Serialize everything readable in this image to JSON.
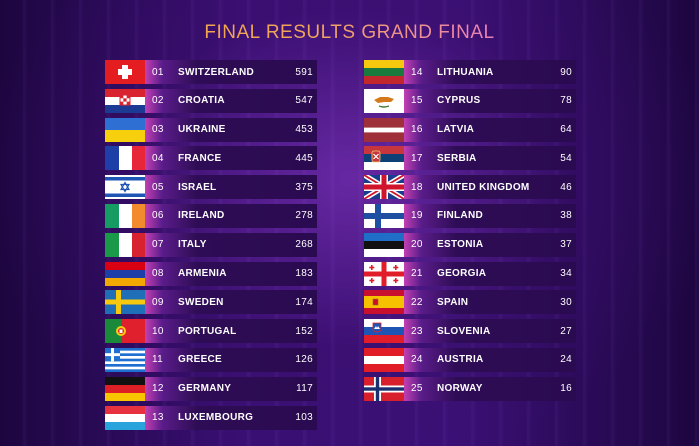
{
  "title": "FINAL RESULTS GRAND FINAL",
  "left": [
    {
      "rank": "01",
      "country": "SWITZERLAND",
      "points": "591",
      "flag_icon": "switzerland-flag-icon"
    },
    {
      "rank": "02",
      "country": "CROATIA",
      "points": "547",
      "flag_icon": "croatia-flag-icon"
    },
    {
      "rank": "03",
      "country": "UKRAINE",
      "points": "453",
      "flag_icon": "ukraine-flag-icon"
    },
    {
      "rank": "04",
      "country": "FRANCE",
      "points": "445",
      "flag_icon": "france-flag-icon"
    },
    {
      "rank": "05",
      "country": "ISRAEL",
      "points": "375",
      "flag_icon": "israel-flag-icon"
    },
    {
      "rank": "06",
      "country": "IRELAND",
      "points": "278",
      "flag_icon": "ireland-flag-icon"
    },
    {
      "rank": "07",
      "country": "ITALY",
      "points": "268",
      "flag_icon": "italy-flag-icon"
    },
    {
      "rank": "08",
      "country": "ARMENIA",
      "points": "183",
      "flag_icon": "armenia-flag-icon"
    },
    {
      "rank": "09",
      "country": "SWEDEN",
      "points": "174",
      "flag_icon": "sweden-flag-icon"
    },
    {
      "rank": "10",
      "country": "PORTUGAL",
      "points": "152",
      "flag_icon": "portugal-flag-icon"
    },
    {
      "rank": "11",
      "country": "GREECE",
      "points": "126",
      "flag_icon": "greece-flag-icon"
    },
    {
      "rank": "12",
      "country": "GERMANY",
      "points": "117",
      "flag_icon": "germany-flag-icon"
    },
    {
      "rank": "13",
      "country": "LUXEMBOURG",
      "points": "103",
      "flag_icon": "luxembourg-flag-icon"
    }
  ],
  "right": [
    {
      "rank": "14",
      "country": "LITHUANIA",
      "points": "90",
      "flag_icon": "lithuania-flag-icon"
    },
    {
      "rank": "15",
      "country": "CYPRUS",
      "points": "78",
      "flag_icon": "cyprus-flag-icon"
    },
    {
      "rank": "16",
      "country": "LATVIA",
      "points": "64",
      "flag_icon": "latvia-flag-icon"
    },
    {
      "rank": "17",
      "country": "SERBIA",
      "points": "54",
      "flag_icon": "serbia-flag-icon"
    },
    {
      "rank": "18",
      "country": "UNITED KINGDOM",
      "points": "46",
      "flag_icon": "united-kingdom-flag-icon"
    },
    {
      "rank": "19",
      "country": "FINLAND",
      "points": "38",
      "flag_icon": "finland-flag-icon"
    },
    {
      "rank": "20",
      "country": "ESTONIA",
      "points": "37",
      "flag_icon": "estonia-flag-icon"
    },
    {
      "rank": "21",
      "country": "GEORGIA",
      "points": "34",
      "flag_icon": "georgia-flag-icon"
    },
    {
      "rank": "22",
      "country": "SPAIN",
      "points": "30",
      "flag_icon": "spain-flag-icon"
    },
    {
      "rank": "23",
      "country": "SLOVENIA",
      "points": "27",
      "flag_icon": "slovenia-flag-icon"
    },
    {
      "rank": "24",
      "country": "AUSTRIA",
      "points": "24",
      "flag_icon": "austria-flag-icon"
    },
    {
      "rank": "25",
      "country": "NORWAY",
      "points": "16",
      "flag_icon": "norway-flag-icon"
    }
  ],
  "colors": {
    "title_start": "#f4a13c",
    "title_end": "#c78cf0",
    "bar_accent": "#c23fb3",
    "bar_dark": "#2a0a50"
  }
}
